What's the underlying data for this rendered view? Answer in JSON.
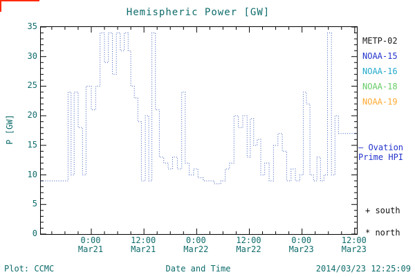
{
  "title": "Hemispheric Power [GW]",
  "y_axis": {
    "label": "P [GW]",
    "ticks": [
      "0",
      "5",
      "10",
      "15",
      "20",
      "25",
      "30",
      "35"
    ]
  },
  "x_axis": {
    "label": "Date and Time",
    "ticks": [
      {
        "time": "0:00",
        "date": "Mar21"
      },
      {
        "time": "12:00",
        "date": "Mar21"
      },
      {
        "time": "0:00",
        "date": "Mar22"
      },
      {
        "time": "12:00",
        "date": "Mar22"
      },
      {
        "time": "0:00",
        "date": "Mar23"
      },
      {
        "time": "12:00",
        "date": "Mar23"
      }
    ]
  },
  "legend": [
    {
      "label": "METP-02",
      "color": "#1a1a1a"
    },
    {
      "label": "NOAA-15",
      "color": "#2233cc"
    },
    {
      "label": "NOAA-16",
      "color": "#22aacc"
    },
    {
      "label": "NOAA-18",
      "color": "#66cc66"
    },
    {
      "label": "NOAA-19",
      "color": "#ffaa33"
    }
  ],
  "side_notes": {
    "ovation_line1": "— Ovation",
    "ovation_line2": "Prime HPI",
    "ovation_color": "#2233cc",
    "south": "+ south",
    "north": "* north"
  },
  "footer": {
    "source": "Plot: CCMC",
    "timestamp": "2014/03/23 12:25:09"
  },
  "colors": {
    "teal": "#0e6b6b",
    "axis": "#000000",
    "line": "#3355bb",
    "artifact": "#ff2a00"
  },
  "chart_data": {
    "type": "line",
    "subtype": "step-dotted",
    "title": "Hemispheric Power [GW]",
    "xlabel": "Date and Time",
    "ylabel": "P [GW]",
    "x_units": "hours since 2014-03-21 00:00",
    "xlim": [
      -11.5,
      60.5
    ],
    "ylim": [
      0,
      35
    ],
    "x_major_ticks": [
      0,
      12,
      24,
      36,
      48,
      60
    ],
    "x_minor_step": 3,
    "y_major_ticks": [
      0,
      5,
      10,
      15,
      20,
      25,
      30,
      35
    ],
    "y_minor_step": 1,
    "grid": false,
    "legend_position": "right-outside",
    "series": [
      {
        "name": "Ovation Prime HPI",
        "color": "#3355bb",
        "points_hour_gw": [
          [
            -11.5,
            9
          ],
          [
            -5.3,
            24
          ],
          [
            -4.6,
            10
          ],
          [
            -3.9,
            24
          ],
          [
            -3.0,
            18
          ],
          [
            -2.0,
            10
          ],
          [
            -1.2,
            25
          ],
          [
            0.0,
            21
          ],
          [
            1.0,
            25
          ],
          [
            2.0,
            34
          ],
          [
            3.0,
            29
          ],
          [
            3.9,
            34
          ],
          [
            4.8,
            27
          ],
          [
            5.7,
            34
          ],
          [
            6.6,
            31
          ],
          [
            7.5,
            34
          ],
          [
            8.4,
            31
          ],
          [
            9.0,
            25
          ],
          [
            9.8,
            23
          ],
          [
            10.6,
            19
          ],
          [
            11.4,
            9
          ],
          [
            12.3,
            20
          ],
          [
            13.1,
            9
          ],
          [
            13.8,
            34
          ],
          [
            14.6,
            21
          ],
          [
            15.5,
            13
          ],
          [
            16.5,
            12
          ],
          [
            17.5,
            11
          ],
          [
            18.5,
            13
          ],
          [
            19.6,
            11
          ],
          [
            20.6,
            24
          ],
          [
            21.4,
            12
          ],
          [
            22.3,
            10
          ],
          [
            23.3,
            11
          ],
          [
            24.3,
            9.5
          ],
          [
            25.5,
            9
          ],
          [
            28.0,
            8.5
          ],
          [
            29.5,
            9
          ],
          [
            30.5,
            11
          ],
          [
            31.5,
            12
          ],
          [
            32.5,
            20
          ],
          [
            33.5,
            18
          ],
          [
            34.5,
            20
          ],
          [
            35.5,
            13
          ],
          [
            36.2,
            19.5
          ],
          [
            37.0,
            15
          ],
          [
            37.8,
            16
          ],
          [
            38.6,
            10
          ],
          [
            39.5,
            12
          ],
          [
            40.5,
            9
          ],
          [
            41.5,
            15
          ],
          [
            42.5,
            17
          ],
          [
            43.5,
            14
          ],
          [
            44.5,
            9
          ],
          [
            45.5,
            11
          ],
          [
            46.5,
            9
          ],
          [
            47.5,
            10
          ],
          [
            48.3,
            24
          ],
          [
            49.0,
            22
          ],
          [
            49.8,
            10
          ],
          [
            50.6,
            9
          ],
          [
            51.4,
            13
          ],
          [
            52.2,
            9
          ],
          [
            53.0,
            10
          ],
          [
            53.8,
            34
          ],
          [
            54.7,
            10
          ],
          [
            55.5,
            20
          ],
          [
            56.3,
            17
          ],
          [
            60.2,
            17
          ]
        ]
      }
    ]
  }
}
